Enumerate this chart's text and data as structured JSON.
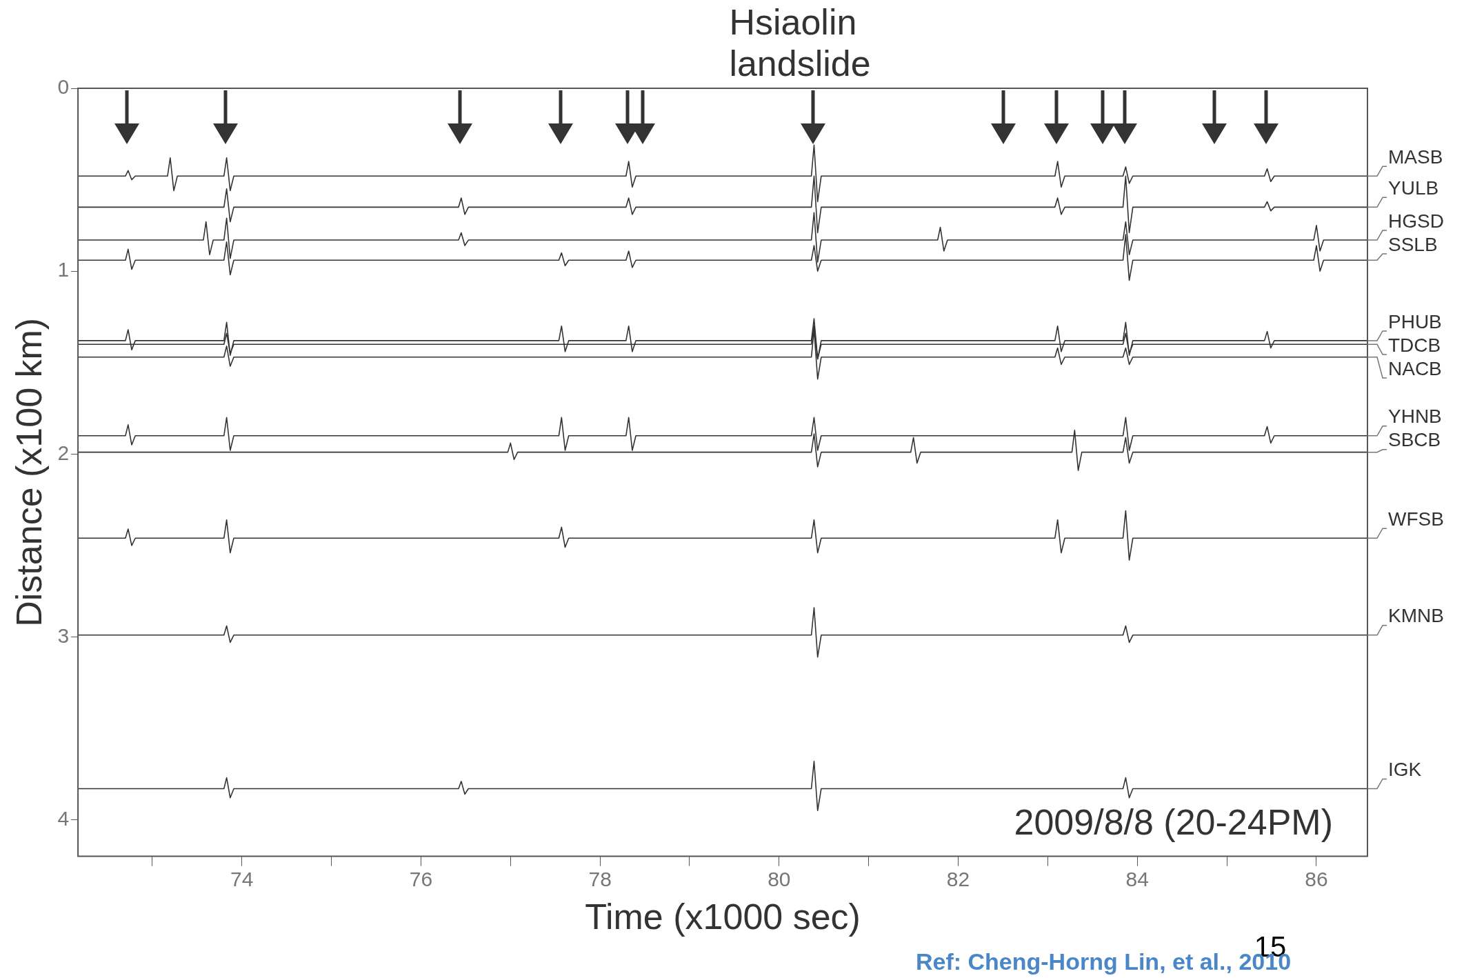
{
  "chart_data": {
    "type": "line",
    "xlabel": "Time (x1000 sec)",
    "ylabel": "Distance (x100 km)",
    "xlim": [
      72.17,
      86.57
    ],
    "ylim": [
      4.2,
      0
    ],
    "xticks": [
      {
        "value": 73,
        "label": null
      },
      74,
      {
        "value": 75,
        "label": null
      },
      76,
      {
        "value": 77,
        "label": null
      },
      78,
      {
        "value": 79,
        "label": null
      },
      80,
      {
        "value": 81,
        "label": null
      },
      82,
      {
        "value": 83,
        "label": null
      },
      84,
      {
        "value": 85,
        "label": null
      },
      86
    ],
    "yticks": [
      0,
      1,
      2,
      3,
      4
    ],
    "grid": false,
    "legend": false,
    "marker": "none",
    "line_style": "solid",
    "series": [
      {
        "name": "MASB",
        "color": "#333333",
        "x": [
          72.17,
          72.7,
          72.73,
          72.77,
          72.81,
          73.17,
          73.2,
          73.24,
          73.28,
          73.8,
          73.83,
          73.87,
          73.91,
          78.29,
          78.32,
          78.36,
          78.4,
          80.36,
          80.39,
          80.43,
          80.47,
          83.08,
          83.11,
          83.15,
          83.19,
          83.84,
          83.87,
          83.91,
          83.95,
          85.42,
          85.45,
          85.49,
          85.53,
          86.57
        ],
        "values": [
          0.48,
          0.48,
          0.45,
          0.5,
          0.48,
          0.48,
          0.38,
          0.56,
          0.48,
          0.48,
          0.38,
          0.56,
          0.48,
          0.48,
          0.4,
          0.54,
          0.48,
          0.48,
          0.31,
          0.62,
          0.48,
          0.48,
          0.4,
          0.54,
          0.48,
          0.48,
          0.43,
          0.52,
          0.48,
          0.48,
          0.44,
          0.51,
          0.48,
          0.48
        ]
      },
      {
        "name": "YULB",
        "color": "#333333",
        "x": [
          72.17,
          73.8,
          73.83,
          73.87,
          73.91,
          76.42,
          76.45,
          76.49,
          76.53,
          78.29,
          78.32,
          78.36,
          78.4,
          80.36,
          80.39,
          80.43,
          80.47,
          83.08,
          83.11,
          83.15,
          83.19,
          83.84,
          83.87,
          83.91,
          83.95,
          85.42,
          85.45,
          85.49,
          85.53,
          86.57
        ],
        "values": [
          0.65,
          0.65,
          0.55,
          0.73,
          0.65,
          0.65,
          0.6,
          0.69,
          0.65,
          0.65,
          0.6,
          0.69,
          0.65,
          0.65,
          0.48,
          0.79,
          0.65,
          0.65,
          0.6,
          0.69,
          0.65,
          0.65,
          0.48,
          0.79,
          0.65,
          0.65,
          0.62,
          0.67,
          0.65,
          0.65
        ]
      },
      {
        "name": "HGSD",
        "color": "#333333",
        "x": [
          72.17,
          73.57,
          73.6,
          73.64,
          73.68,
          73.8,
          73.83,
          73.87,
          73.91,
          76.42,
          76.45,
          76.49,
          76.53,
          80.36,
          80.39,
          80.43,
          80.47,
          81.77,
          81.8,
          81.84,
          81.88,
          83.84,
          83.87,
          83.91,
          83.95,
          85.97,
          86.0,
          86.04,
          86.08,
          86.57
        ],
        "values": [
          0.83,
          0.83,
          0.73,
          0.91,
          0.83,
          0.83,
          0.71,
          0.93,
          0.83,
          0.83,
          0.79,
          0.86,
          0.83,
          0.83,
          0.68,
          0.95,
          0.83,
          0.83,
          0.76,
          0.89,
          0.83,
          0.83,
          0.73,
          0.91,
          0.83,
          0.83,
          0.75,
          0.89,
          0.83,
          0.83
        ]
      },
      {
        "name": "SSLB",
        "color": "#333333",
        "x": [
          72.17,
          72.7,
          72.73,
          72.77,
          72.81,
          73.8,
          73.83,
          73.87,
          73.91,
          77.54,
          77.57,
          77.61,
          77.65,
          78.29,
          78.32,
          78.36,
          78.4,
          80.36,
          80.39,
          80.43,
          80.47,
          83.84,
          83.87,
          83.91,
          83.95,
          85.97,
          86.0,
          86.04,
          86.08,
          86.57
        ],
        "values": [
          0.94,
          0.94,
          0.88,
          0.99,
          0.94,
          0.94,
          0.84,
          1.02,
          0.94,
          0.94,
          0.9,
          0.97,
          0.94,
          0.94,
          0.89,
          0.98,
          0.94,
          0.94,
          0.86,
          1.0,
          0.94,
          0.94,
          0.8,
          1.05,
          0.94,
          0.94,
          0.86,
          1.0,
          0.94,
          0.94
        ]
      },
      {
        "name": "PHUB",
        "color": "#333333",
        "x": [
          72.17,
          72.7,
          72.73,
          72.77,
          72.81,
          73.8,
          73.83,
          73.87,
          73.91,
          77.54,
          77.57,
          77.61,
          77.65,
          78.29,
          78.32,
          78.36,
          78.4,
          80.36,
          80.39,
          80.43,
          80.47,
          83.08,
          83.11,
          83.15,
          83.19,
          83.84,
          83.87,
          83.91,
          83.95,
          85.42,
          85.45,
          85.49,
          85.53,
          86.57
        ],
        "values": [
          1.38,
          1.38,
          1.32,
          1.43,
          1.38,
          1.38,
          1.28,
          1.46,
          1.38,
          1.38,
          1.3,
          1.44,
          1.38,
          1.38,
          1.3,
          1.44,
          1.38,
          1.38,
          1.26,
          1.48,
          1.38,
          1.38,
          1.3,
          1.44,
          1.38,
          1.38,
          1.28,
          1.46,
          1.38,
          1.38,
          1.33,
          1.42,
          1.38,
          1.38
        ]
      },
      {
        "name": "TDCB",
        "color": "#333333",
        "x": [
          72.17,
          73.8,
          73.83,
          73.87,
          73.91,
          80.36,
          80.39,
          80.43,
          80.47,
          83.84,
          83.87,
          83.91,
          83.95,
          86.57
        ],
        "values": [
          1.4,
          1.4,
          1.34,
          1.45,
          1.4,
          1.4,
          1.3,
          1.48,
          1.4,
          1.4,
          1.34,
          1.45,
          1.4,
          1.4
        ]
      },
      {
        "name": "NACB",
        "color": "#333333",
        "x": [
          72.17,
          73.8,
          73.83,
          73.87,
          73.91,
          80.36,
          80.39,
          80.43,
          80.47,
          83.08,
          83.11,
          83.15,
          83.19,
          83.84,
          83.87,
          83.91,
          83.95,
          86.57
        ],
        "values": [
          1.47,
          1.47,
          1.41,
          1.52,
          1.47,
          1.47,
          1.32,
          1.59,
          1.47,
          1.47,
          1.42,
          1.51,
          1.47,
          1.47,
          1.42,
          1.51,
          1.47,
          1.47
        ]
      },
      {
        "name": "YHNB",
        "color": "#333333",
        "x": [
          72.17,
          72.7,
          72.73,
          72.77,
          72.81,
          73.8,
          73.83,
          73.87,
          73.91,
          77.54,
          77.57,
          77.61,
          77.65,
          78.29,
          78.32,
          78.36,
          78.4,
          80.36,
          80.39,
          80.43,
          80.47,
          83.84,
          83.87,
          83.91,
          83.95,
          85.42,
          85.45,
          85.49,
          85.53,
          86.57
        ],
        "values": [
          1.9,
          1.9,
          1.84,
          1.95,
          1.9,
          1.9,
          1.8,
          1.98,
          1.9,
          1.9,
          1.8,
          1.98,
          1.9,
          1.9,
          1.8,
          1.98,
          1.9,
          1.9,
          1.8,
          1.98,
          1.9,
          1.9,
          1.8,
          1.98,
          1.9,
          1.9,
          1.85,
          1.94,
          1.9,
          1.9
        ]
      },
      {
        "name": "SBCB",
        "color": "#333333",
        "x": [
          72.17,
          76.97,
          77.0,
          77.04,
          77.08,
          80.36,
          80.39,
          80.43,
          80.47,
          81.47,
          81.5,
          81.54,
          81.58,
          83.27,
          83.3,
          83.34,
          83.38,
          83.84,
          83.87,
          83.91,
          83.95,
          86.57
        ],
        "values": [
          1.99,
          1.99,
          1.94,
          2.03,
          1.99,
          1.99,
          1.89,
          2.07,
          1.99,
          1.99,
          1.91,
          2.05,
          1.99,
          1.99,
          1.87,
          2.09,
          1.99,
          1.99,
          1.91,
          2.05,
          1.99,
          1.99
        ]
      },
      {
        "name": "WFSB",
        "color": "#333333",
        "x": [
          72.17,
          72.7,
          72.73,
          72.77,
          72.81,
          73.8,
          73.83,
          73.87,
          73.91,
          77.54,
          77.57,
          77.61,
          77.65,
          80.36,
          80.39,
          80.43,
          80.47,
          83.08,
          83.11,
          83.15,
          83.19,
          83.84,
          83.87,
          83.91,
          83.95,
          86.57
        ],
        "values": [
          2.46,
          2.46,
          2.41,
          2.5,
          2.46,
          2.46,
          2.36,
          2.54,
          2.46,
          2.46,
          2.4,
          2.51,
          2.46,
          2.46,
          2.36,
          2.54,
          2.46,
          2.46,
          2.36,
          2.54,
          2.46,
          2.46,
          2.31,
          2.58,
          2.46,
          2.46
        ]
      },
      {
        "name": "KMNB",
        "color": "#333333",
        "x": [
          72.17,
          73.8,
          73.83,
          73.87,
          73.91,
          80.36,
          80.39,
          80.43,
          80.47,
          83.84,
          83.87,
          83.91,
          83.95,
          86.57
        ],
        "values": [
          2.99,
          2.99,
          2.94,
          3.03,
          2.99,
          2.99,
          2.84,
          3.11,
          2.99,
          2.99,
          2.94,
          3.03,
          2.99,
          2.99
        ]
      },
      {
        "name": "IGK",
        "color": "#333333",
        "x": [
          72.17,
          73.8,
          73.83,
          73.87,
          73.91,
          76.42,
          76.45,
          76.49,
          76.53,
          80.36,
          80.39,
          80.43,
          80.47,
          83.84,
          83.87,
          83.91,
          83.95,
          86.57
        ],
        "values": [
          3.83,
          3.83,
          3.77,
          3.88,
          3.83,
          3.83,
          3.79,
          3.86,
          3.83,
          3.83,
          3.68,
          3.95,
          3.83,
          3.83,
          3.77,
          3.88,
          3.83,
          3.83
        ]
      }
    ],
    "annotations": [
      "Hsiaolin\nlandslide",
      "2009/8/8 (20-24PM)",
      "15",
      "Ref: Cheng-Horng Lin, et al., 2010"
    ]
  }
}
